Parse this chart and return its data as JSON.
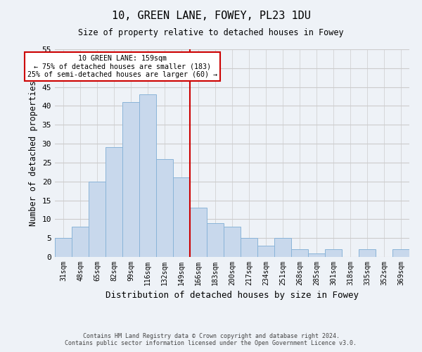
{
  "title": "10, GREEN LANE, FOWEY, PL23 1DU",
  "subtitle": "Size of property relative to detached houses in Fowey",
  "xlabel": "Distribution of detached houses by size in Fowey",
  "ylabel": "Number of detached properties",
  "bar_labels": [
    "31sqm",
    "48sqm",
    "65sqm",
    "82sqm",
    "99sqm",
    "116sqm",
    "132sqm",
    "149sqm",
    "166sqm",
    "183sqm",
    "200sqm",
    "217sqm",
    "234sqm",
    "251sqm",
    "268sqm",
    "285sqm",
    "301sqm",
    "318sqm",
    "335sqm",
    "352sqm",
    "369sqm"
  ],
  "bar_values": [
    5,
    8,
    20,
    29,
    41,
    43,
    26,
    21,
    13,
    9,
    8,
    5,
    3,
    5,
    2,
    1,
    2,
    0,
    2,
    0,
    2
  ],
  "bar_color": "#c8d8ec",
  "bar_edge_color": "#8ab4d8",
  "grid_color": "#cccccc",
  "background_color": "#eef2f7",
  "vline_x": 7.5,
  "vline_color": "#cc0000",
  "annotation_title": "10 GREEN LANE: 159sqm",
  "annotation_line1": "← 75% of detached houses are smaller (183)",
  "annotation_line2": "25% of semi-detached houses are larger (60) →",
  "annotation_box_color": "#ffffff",
  "annotation_box_edge": "#cc0000",
  "ylim": [
    0,
    55
  ],
  "yticks": [
    0,
    5,
    10,
    15,
    20,
    25,
    30,
    35,
    40,
    45,
    50,
    55
  ],
  "footer1": "Contains HM Land Registry data © Crown copyright and database right 2024.",
  "footer2": "Contains public sector information licensed under the Open Government Licence v3.0."
}
